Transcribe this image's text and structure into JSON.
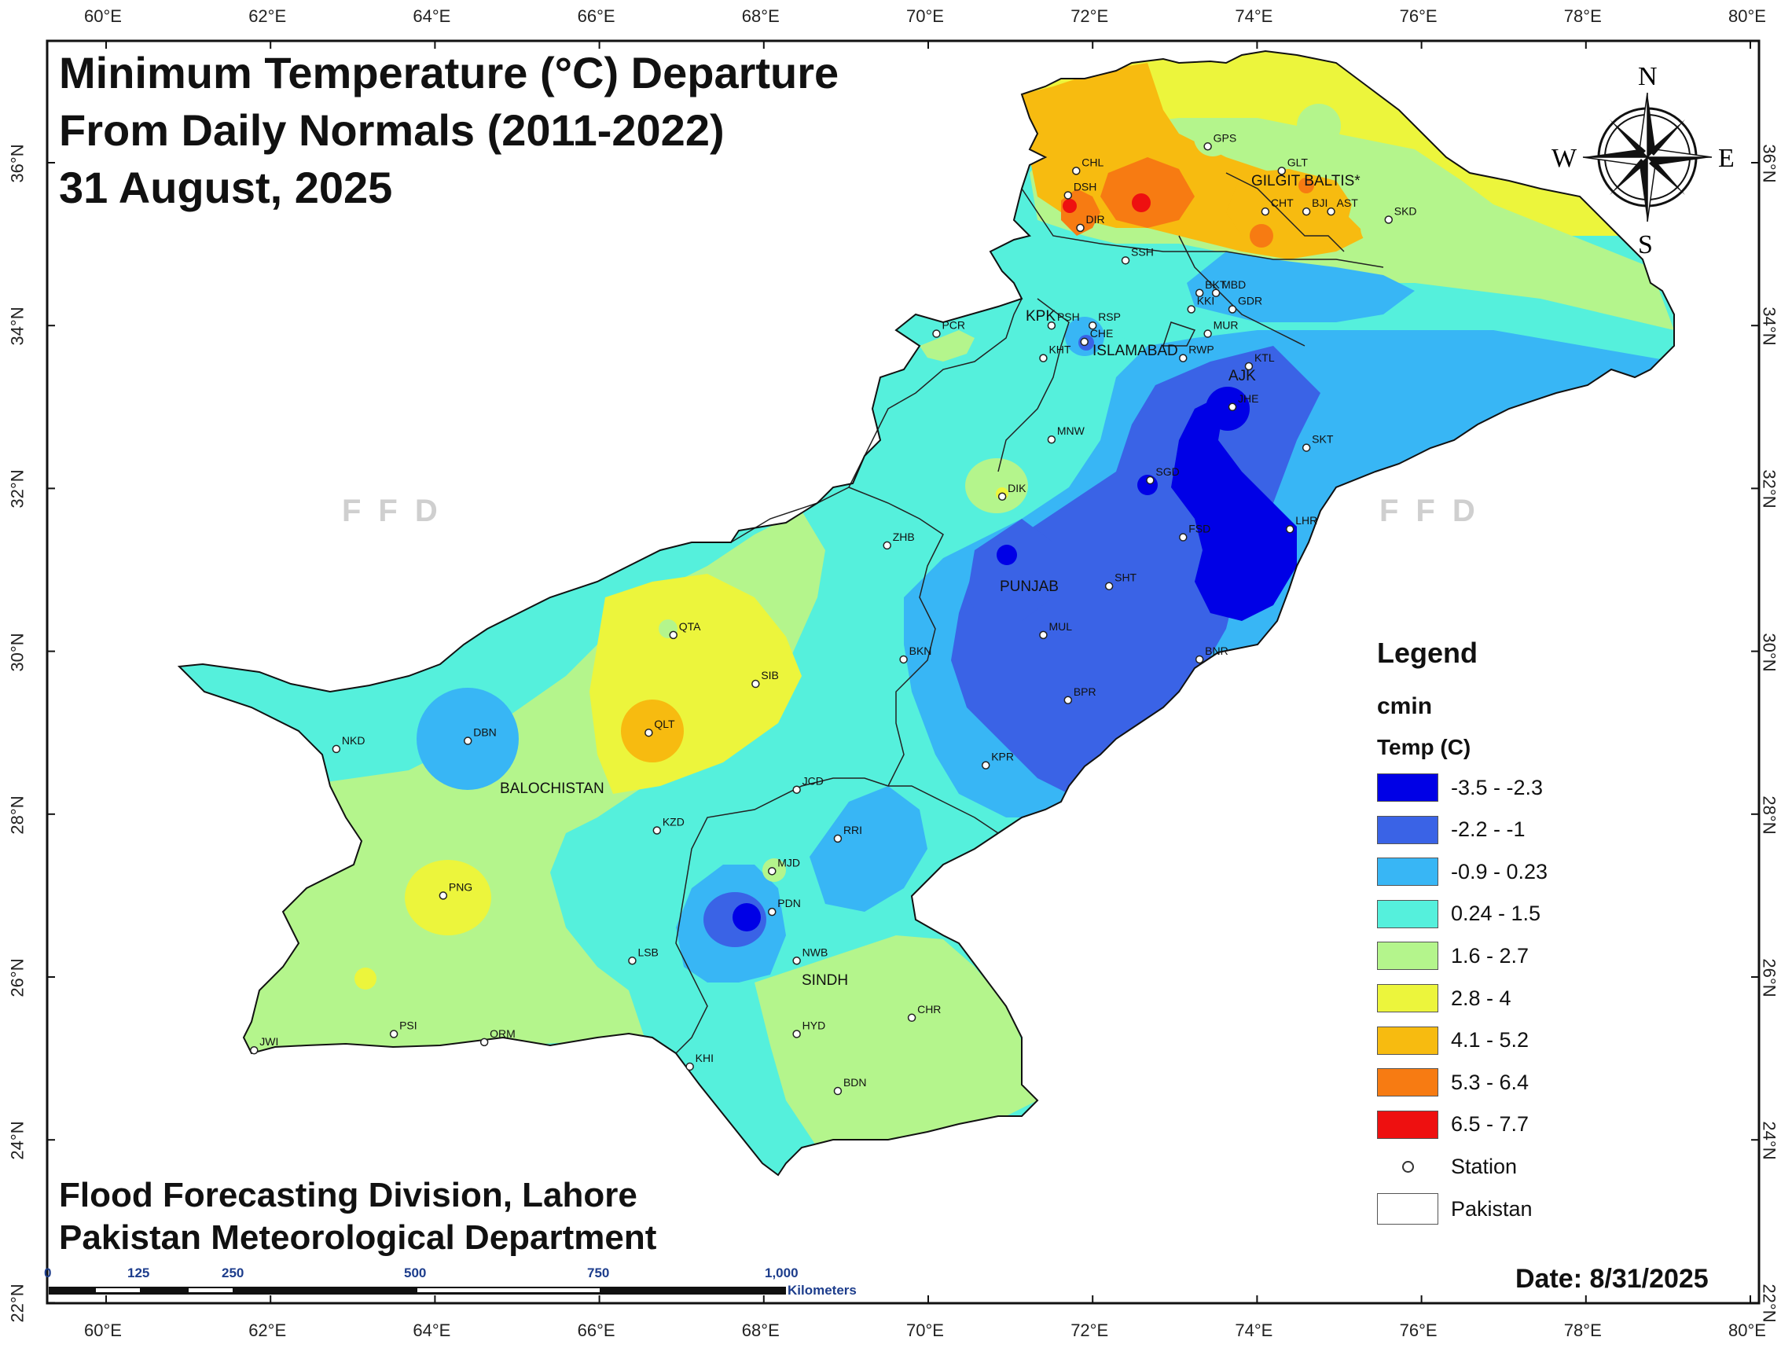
{
  "title": {
    "line1": "Minimum Temperature (°C) Departure",
    "line2": "From Daily Normals (2011-2022)",
    "line3": "31 August, 2025"
  },
  "credits": {
    "line1": "Flood Forecasting Division, Lahore",
    "line2": "Pakistan Meteorological Department"
  },
  "date": "Date: 8/31/2025",
  "axes": {
    "longitude_ticks": [
      "60°E",
      "62°E",
      "64°E",
      "66°E",
      "68°E",
      "70°E",
      "72°E",
      "74°E",
      "76°E",
      "78°E",
      "80°E"
    ],
    "latitude_ticks": [
      "36°N",
      "34°N",
      "32°N",
      "30°N",
      "28°N",
      "26°N",
      "24°N",
      "22°N"
    ]
  },
  "compass": {
    "n": "N",
    "s": "S",
    "e": "E",
    "w": "W"
  },
  "watermark": "FFD",
  "legend": {
    "title": "Legend",
    "layer": "cmin",
    "field": "Temp (C)",
    "classes": [
      {
        "label": "-3.5 - -2.3",
        "color": "#0000e6"
      },
      {
        "label": "-2.2 - -1",
        "color": "#3a63e6"
      },
      {
        "label": "-0.9 - 0.23",
        "color": "#38b6f5"
      },
      {
        "label": "0.24 - 1.5",
        "color": "#55f0dc"
      },
      {
        "label": "1.6 - 2.7",
        "color": "#b4f58c"
      },
      {
        "label": "2.8 - 4",
        "color": "#ecf53c"
      },
      {
        "label": "4.1 - 5.2",
        "color": "#f7bb10"
      },
      {
        "label": "5.3 - 6.4",
        "color": "#f77b12"
      },
      {
        "label": "6.5 - 7.7",
        "color": "#ee1010"
      }
    ],
    "station_label": "Station",
    "boundary_label": "Pakistan"
  },
  "scale_bar": {
    "labels": [
      "0",
      "125",
      "250",
      "500",
      "750",
      "1,000"
    ],
    "unit": "Kilometers"
  },
  "regions": {
    "gilgit": "GILGIT BALTIS*",
    "kpk": "KPK",
    "islamabad": "ISLAMABAD",
    "ajk": "AJK",
    "punjab": "PUNJAB",
    "balochistan": "BALOCHISTAN",
    "sindh": "SINDH"
  },
  "stations": [
    {
      "code": "GPS",
      "lon": 73.4,
      "lat": 36.2
    },
    {
      "code": "GLT",
      "lon": 74.3,
      "lat": 35.9
    },
    {
      "code": "CHL",
      "lon": 71.8,
      "lat": 35.9
    },
    {
      "code": "DSH",
      "lon": 71.7,
      "lat": 35.6
    },
    {
      "code": "DIR",
      "lon": 71.85,
      "lat": 35.2
    },
    {
      "code": "CHT",
      "lon": 74.1,
      "lat": 35.4
    },
    {
      "code": "BJI",
      "lon": 74.6,
      "lat": 35.4
    },
    {
      "code": "AST",
      "lon": 74.9,
      "lat": 35.4
    },
    {
      "code": "SKD",
      "lon": 75.6,
      "lat": 35.3
    },
    {
      "code": "SSH",
      "lon": 72.4,
      "lat": 34.8
    },
    {
      "code": "BKT",
      "lon": 73.3,
      "lat": 34.4
    },
    {
      "code": "MBD",
      "lon": 73.5,
      "lat": 34.4
    },
    {
      "code": "KKI",
      "lon": 73.2,
      "lat": 34.2
    },
    {
      "code": "GDR",
      "lon": 73.7,
      "lat": 34.2
    },
    {
      "code": "PSH",
      "lon": 71.5,
      "lat": 34.0
    },
    {
      "code": "RSP",
      "lon": 72.0,
      "lat": 34.0
    },
    {
      "code": "CHE",
      "lon": 71.9,
      "lat": 33.8
    },
    {
      "code": "MUR",
      "lon": 73.4,
      "lat": 33.9
    },
    {
      "code": "RWP",
      "lon": 73.1,
      "lat": 33.6
    },
    {
      "code": "KTL",
      "lon": 73.9,
      "lat": 33.5
    },
    {
      "code": "KHT",
      "lon": 71.4,
      "lat": 33.6
    },
    {
      "code": "PCR",
      "lon": 70.1,
      "lat": 33.9
    },
    {
      "code": "JHE",
      "lon": 73.7,
      "lat": 33.0
    },
    {
      "code": "MNW",
      "lon": 71.5,
      "lat": 32.6
    },
    {
      "code": "SKT",
      "lon": 74.6,
      "lat": 32.5
    },
    {
      "code": "SGD",
      "lon": 72.7,
      "lat": 32.1
    },
    {
      "code": "DIK",
      "lon": 70.9,
      "lat": 31.9
    },
    {
      "code": "FSD",
      "lon": 73.1,
      "lat": 31.4
    },
    {
      "code": "LHR",
      "lon": 74.4,
      "lat": 31.5
    },
    {
      "code": "ZHB",
      "lon": 69.5,
      "lat": 31.3
    },
    {
      "code": "SHT",
      "lon": 72.2,
      "lat": 30.8
    },
    {
      "code": "QTA",
      "lon": 66.9,
      "lat": 30.2
    },
    {
      "code": "MUL",
      "lon": 71.4,
      "lat": 30.2
    },
    {
      "code": "BNR",
      "lon": 73.3,
      "lat": 29.9
    },
    {
      "code": "BKN",
      "lon": 69.7,
      "lat": 29.9
    },
    {
      "code": "SIB",
      "lon": 67.9,
      "lat": 29.6
    },
    {
      "code": "BPR",
      "lon": 71.7,
      "lat": 29.4
    },
    {
      "code": "QLT",
      "lon": 66.6,
      "lat": 29.0
    },
    {
      "code": "DBN",
      "lon": 64.4,
      "lat": 28.9
    },
    {
      "code": "NKD",
      "lon": 62.8,
      "lat": 28.8
    },
    {
      "code": "KPR",
      "lon": 70.7,
      "lat": 28.6
    },
    {
      "code": "JCD",
      "lon": 68.4,
      "lat": 28.3
    },
    {
      "code": "KZD",
      "lon": 66.7,
      "lat": 27.8
    },
    {
      "code": "RRI",
      "lon": 68.9,
      "lat": 27.7
    },
    {
      "code": "MJD",
      "lon": 68.1,
      "lat": 27.3
    },
    {
      "code": "PNG",
      "lon": 64.1,
      "lat": 27.0
    },
    {
      "code": "PDN",
      "lon": 68.1,
      "lat": 26.8
    },
    {
      "code": "NWB",
      "lon": 68.4,
      "lat": 26.2
    },
    {
      "code": "LSB",
      "lon": 66.4,
      "lat": 26.2
    },
    {
      "code": "CHR",
      "lon": 69.8,
      "lat": 25.5
    },
    {
      "code": "HYD",
      "lon": 68.4,
      "lat": 25.3
    },
    {
      "code": "PSI",
      "lon": 63.5,
      "lat": 25.3
    },
    {
      "code": "ORM",
      "lon": 64.6,
      "lat": 25.2
    },
    {
      "code": "JWI",
      "lon": 61.8,
      "lat": 25.1
    },
    {
      "code": "KHI",
      "lon": 67.1,
      "lat": 24.9
    },
    {
      "code": "BDN",
      "lon": 68.9,
      "lat": 24.6
    }
  ]
}
